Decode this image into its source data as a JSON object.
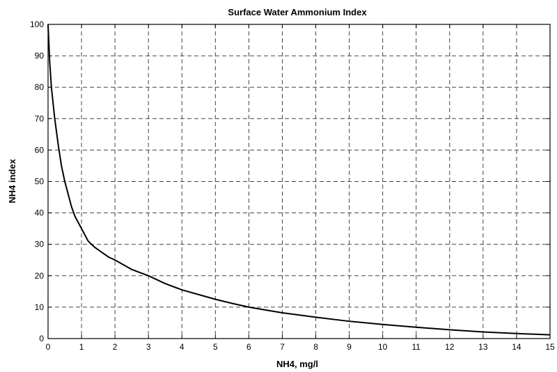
{
  "chart_data": {
    "type": "line",
    "title": "Surface Water Ammonium Index",
    "xlabel": "NH4, mg/l",
    "ylabel": "NH4 index",
    "xlim": [
      0,
      15
    ],
    "ylim": [
      0,
      100
    ],
    "xticks": [
      0,
      1,
      2,
      3,
      4,
      5,
      6,
      7,
      8,
      9,
      10,
      11,
      12,
      13,
      14,
      15
    ],
    "yticks": [
      0,
      10,
      20,
      30,
      40,
      50,
      60,
      70,
      80,
      90,
      100
    ],
    "grid": true,
    "series": [
      {
        "x": [
          0,
          0.05,
          0.1,
          0.2,
          0.3,
          0.4,
          0.5,
          0.6,
          0.7,
          0.8,
          0.9,
          1.0,
          1.2,
          1.4,
          1.6,
          1.8,
          2.0,
          2.5,
          3.0,
          3.5,
          4.0,
          4.5,
          5.0,
          5.5,
          6.0,
          6.5,
          7.0,
          8.0,
          9.0,
          10.0,
          11.0,
          12.0,
          13.0,
          14.0,
          15.0
        ],
        "y": [
          100,
          88,
          80,
          70,
          62,
          55,
          50,
          46,
          42,
          39,
          37,
          35,
          31,
          29,
          27.5,
          26,
          25,
          22,
          20,
          17.5,
          15.5,
          14,
          12.5,
          11.2,
          10,
          9.1,
          8.2,
          6.8,
          5.5,
          4.5,
          3.6,
          2.8,
          2.1,
          1.6,
          1.2
        ]
      }
    ]
  }
}
